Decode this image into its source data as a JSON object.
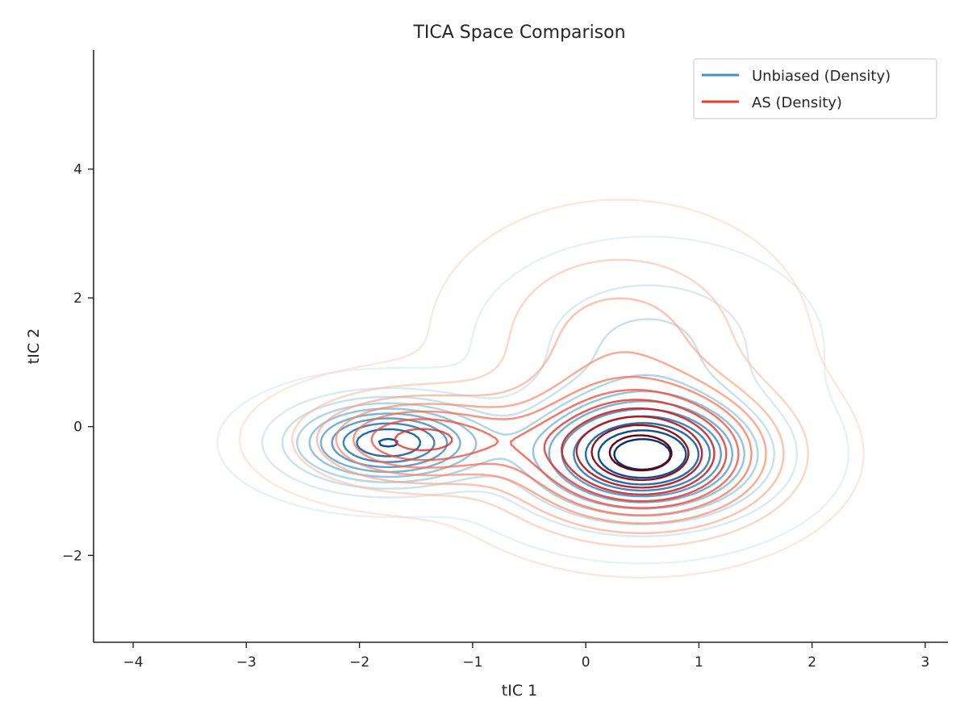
{
  "chart_data": {
    "type": "contour",
    "title": "TICA Space Comparison",
    "xlabel": "tIC 1",
    "ylabel": "tIC 2",
    "xlim": [
      -4.35,
      3.2
    ],
    "ylim": [
      -3.35,
      5.85
    ],
    "xticks": [
      -4,
      -3,
      -2,
      -1,
      0,
      1,
      2,
      3
    ],
    "xtick_labels": [
      "−4",
      "−3",
      "−2",
      "−1",
      "0",
      "1",
      "2",
      "3"
    ],
    "yticks": [
      -2,
      0,
      2,
      4
    ],
    "ytick_labels": [
      "−2",
      "0",
      "2",
      "4"
    ],
    "grid": false,
    "legend_position": "top-right",
    "legend": [
      {
        "label": "Unbiased (Density)",
        "color": "#4292c6"
      },
      {
        "label": "AS (Density)",
        "color": "#ef3b2c"
      }
    ],
    "series": [
      {
        "name": "Unbiased (Density)",
        "colormap": "Blues",
        "levels": 11,
        "components": [
          {
            "weight": 0.55,
            "mean": [
              0.5,
              -0.45
            ],
            "sd": [
              0.65,
              0.6
            ]
          },
          {
            "weight": 0.28,
            "mean": [
              -1.75,
              -0.25
            ],
            "sd": [
              0.55,
              0.42
            ]
          },
          {
            "weight": 0.17,
            "mean": [
              0.55,
              1.3
            ],
            "sd": [
              0.7,
              0.75
            ]
          }
        ]
      },
      {
        "name": "AS (Density)",
        "colormap": "Reds",
        "levels": 11,
        "components": [
          {
            "weight": 0.58,
            "mean": [
              0.5,
              -0.45
            ],
            "sd": [
              0.7,
              0.68
            ]
          },
          {
            "weight": 0.2,
            "mean": [
              -1.5,
              -0.2
            ],
            "sd": [
              0.6,
              0.45
            ]
          },
          {
            "weight": 0.22,
            "mean": [
              0.3,
              1.4
            ],
            "sd": [
              0.75,
              0.95
            ]
          }
        ]
      }
    ]
  }
}
